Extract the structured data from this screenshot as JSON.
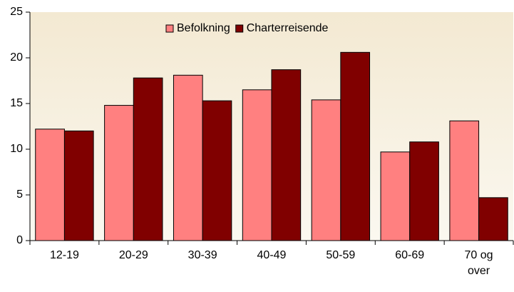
{
  "chart_data": {
    "type": "bar",
    "categories": [
      "12-19",
      "20-29",
      "30-39",
      "40-49",
      "50-59",
      "60-69",
      "70 og over"
    ],
    "series": [
      {
        "name": "Befolkning",
        "color": "#ff8080",
        "values": [
          12.2,
          14.8,
          18.1,
          16.5,
          15.4,
          9.7,
          13.1
        ]
      },
      {
        "name": "Charterreisende",
        "color": "#800000",
        "values": [
          12.0,
          17.8,
          15.3,
          18.7,
          20.6,
          10.8,
          4.7
        ]
      }
    ],
    "ylim": [
      0,
      25
    ],
    "yticks": [
      0,
      5,
      10,
      15,
      20,
      25
    ],
    "grid": false,
    "legend": "top"
  }
}
